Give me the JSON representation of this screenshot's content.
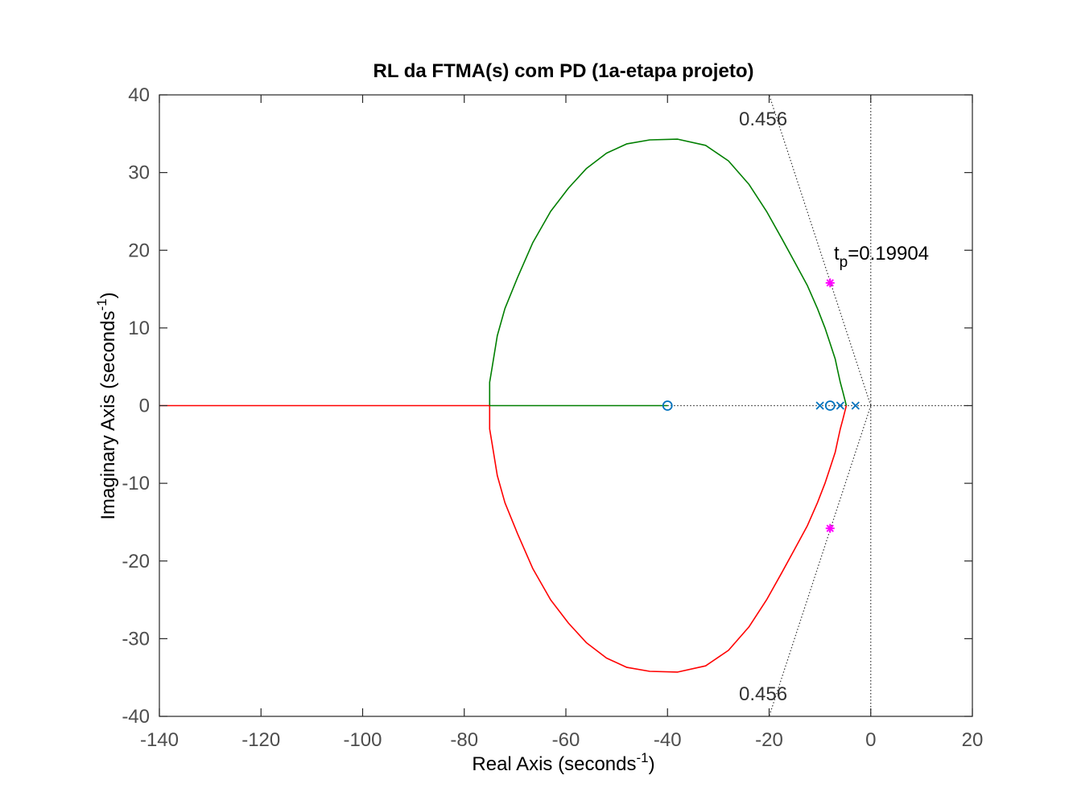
{
  "chart_data": {
    "type": "scatter",
    "title": "RL da FTMA(s) com PD (1a-etapa projeto)",
    "xlabel_main": "Real Axis (seconds",
    "xlabel_sup": "-1",
    "xlabel_close": ")",
    "ylabel_main": "Imaginary Axis (seconds",
    "ylabel_sup": "-1",
    "ylabel_close": ")",
    "xlim": [
      -140,
      20
    ],
    "ylim": [
      -40,
      40
    ],
    "xticks": [
      -140,
      -120,
      -100,
      -80,
      -60,
      -40,
      -20,
      0,
      20
    ],
    "yticks": [
      -40,
      -30,
      -20,
      -10,
      0,
      10,
      20,
      30,
      40
    ],
    "xtick_labels": [
      "-140",
      "-120",
      "-100",
      "-80",
      "-60",
      "-40",
      "-20",
      "0",
      "20"
    ],
    "ytick_labels": [
      "-40",
      "-30",
      "-20",
      "-10",
      "0",
      "10",
      "20",
      "30",
      "40"
    ],
    "grid": false,
    "colors": {
      "green_branch": "#007f00",
      "red_branch": "#ff0000",
      "markers": "#0072bd",
      "design_point": "#ff00ff",
      "guide_lines": "#333333"
    },
    "series": [
      {
        "color": "#007f00",
        "x": [
          -75,
          -75,
          -75,
          -74.5,
          -73.5,
          -72,
          -69.5,
          -66.5,
          -63,
          -59.5,
          -56,
          -52,
          -48,
          -43.5,
          -38,
          -32.5,
          -28,
          -24,
          -20.5,
          -17.5,
          -15,
          -12.5,
          -10.5,
          -9,
          -8,
          -7,
          -6.5,
          -6,
          -5.5,
          -5,
          -4.8
        ],
        "y": [
          0,
          1.5,
          3,
          5,
          9,
          12.5,
          16.5,
          21,
          25,
          28,
          30.5,
          32.5,
          33.7,
          34.2,
          34.3,
          33.5,
          31.5,
          28.5,
          25,
          21.5,
          18.5,
          15.5,
          12.5,
          10,
          8,
          6,
          4.5,
          3,
          1.8,
          0.5,
          0
        ]
      },
      {
        "color": "#ff0000",
        "x": [
          -75,
          -75,
          -75,
          -74.5,
          -73.5,
          -72,
          -69.5,
          -66.5,
          -63,
          -59.5,
          -56,
          -52,
          -48,
          -43.5,
          -38,
          -32.5,
          -28,
          -24,
          -20.5,
          -17.5,
          -15,
          -12.5,
          -10.5,
          -9,
          -8,
          -7,
          -6.5,
          -6,
          -5.5,
          -5,
          -4.8
        ],
        "y": [
          0,
          -1.5,
          -3,
          -5,
          -9,
          -12.5,
          -16.5,
          -21,
          -25,
          -28,
          -30.5,
          -32.5,
          -33.7,
          -34.2,
          -34.3,
          -33.5,
          -31.5,
          -28.5,
          -25,
          -21.5,
          -18.5,
          -15.5,
          -12.5,
          -10,
          -8,
          -6,
          -4.5,
          -3,
          -1.8,
          -0.5,
          0
        ]
      },
      {
        "color": "#ff0000",
        "x": [
          -140,
          -75
        ],
        "y": [
          0,
          0
        ]
      },
      {
        "color": "#007f00",
        "x": [
          -75,
          -40
        ],
        "y": [
          0,
          0
        ]
      }
    ],
    "poles": {
      "x": [
        -10,
        -6,
        -3
      ],
      "y": [
        0,
        0,
        0
      ]
    },
    "zeros": {
      "x": [
        -40,
        -8
      ],
      "y": [
        0,
        0
      ]
    },
    "design_points": {
      "x": [
        -8,
        -8
      ],
      "y": [
        15.8,
        -15.8
      ]
    },
    "damping_lines": {
      "zeta": "0.456",
      "upper_end": [
        -20,
        40
      ],
      "lower_end": [
        -20,
        -40
      ]
    },
    "annotations": {
      "zeta_top": "0.456",
      "zeta_bottom": "0.456",
      "tp_t": "t",
      "tp_sub": "p",
      "tp_value": "=0.19904"
    }
  }
}
